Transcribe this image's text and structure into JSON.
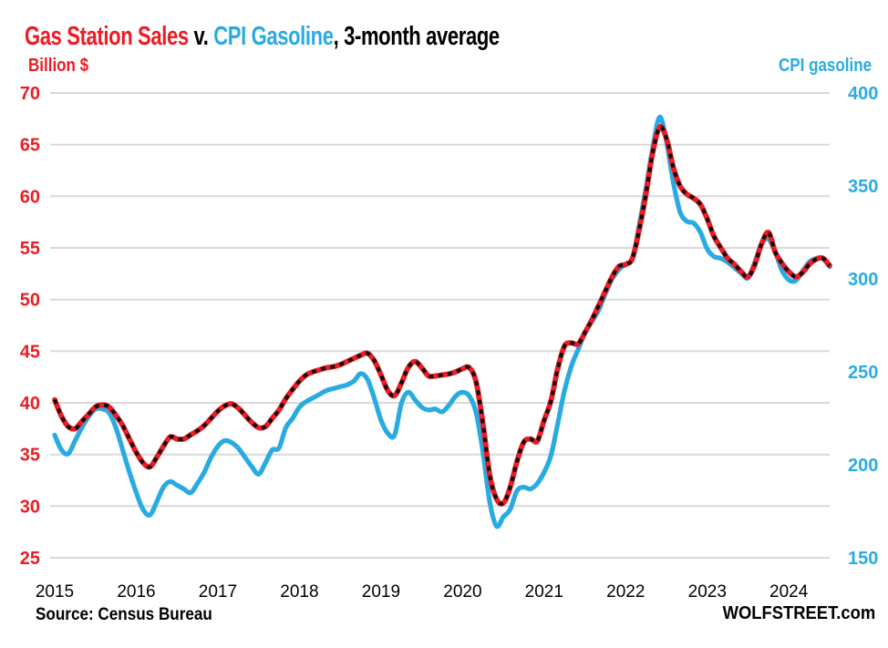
{
  "title": {
    "sales": "Gas Station Sales",
    "vs": " v. ",
    "cpi": "CPI Gasoline",
    "suffix": ", 3-month average"
  },
  "axis_titles": {
    "left": "Billion $",
    "right": "CPI gasoline"
  },
  "footer": {
    "source": "Source: Census Bureau",
    "brand": "WOLFSTREET.com"
  },
  "colors": {
    "sales_red": "#ec1c24",
    "cpi_blue": "#29abe2",
    "dash_black": "#0d0d0d",
    "grid_gray": "#d9d9d9",
    "text_black": "#000000"
  },
  "chart_data": {
    "type": "line",
    "title": "Gas Station Sales v. CPI Gasoline, 3-month average",
    "x_tick_labels": [
      "2015",
      "2016",
      "2017",
      "2018",
      "2019",
      "2020",
      "2021",
      "2022",
      "2023",
      "2024"
    ],
    "x_unit": "month",
    "grid": true,
    "left_axis": {
      "label": "Billion $",
      "ticks": [
        70,
        65,
        60,
        55,
        50,
        45,
        40,
        35,
        30,
        25
      ],
      "range": [
        25,
        70
      ]
    },
    "right_axis": {
      "label": "CPI gasoline",
      "ticks": [
        400,
        350,
        300,
        250,
        200,
        150
      ],
      "range": [
        150,
        400
      ]
    },
    "series": [
      {
        "name": "Gas Station Sales",
        "axis": "left",
        "color": "#ec1c24",
        "style": "solid-with-black-dash-overlay",
        "values": [
          40.3,
          38.7,
          37.7,
          37.5,
          38.2,
          38.9,
          39.6,
          39.8,
          39.6,
          38.8,
          37.8,
          36.5,
          35.2,
          34.2,
          33.8,
          34.7,
          35.8,
          36.7,
          36.5,
          36.5,
          36.9,
          37.3,
          37.8,
          38.5,
          39.2,
          39.7,
          39.9,
          39.5,
          38.8,
          38.1,
          37.6,
          37.7,
          38.5,
          39.3,
          40.4,
          41.3,
          42.1,
          42.7,
          43.0,
          43.2,
          43.4,
          43.5,
          43.7,
          44.0,
          44.3,
          44.6,
          44.8,
          44.1,
          42.7,
          41.2,
          40.7,
          41.9,
          43.4,
          44.0,
          43.4,
          42.6,
          42.6,
          42.7,
          42.8,
          43.0,
          43.3,
          43.4,
          42.0,
          38.0,
          33.0,
          30.7,
          30.3,
          31.8,
          34.3,
          36.2,
          36.5,
          36.3,
          38.3,
          40.2,
          43.3,
          45.5,
          45.8,
          45.7,
          46.8,
          48.0,
          49.4,
          50.8,
          52.2,
          53.2,
          53.4,
          54.0,
          56.8,
          60.3,
          64.3,
          66.7,
          65.6,
          62.8,
          61.0,
          60.2,
          59.8,
          59.2,
          57.8,
          56.1,
          55.0,
          54.0,
          53.4,
          52.7,
          52.2,
          53.4,
          55.4,
          56.5,
          54.6,
          53.5,
          52.7,
          52.2,
          52.6,
          53.4,
          53.9,
          54.0,
          53.3
        ]
      },
      {
        "name": "CPI Gasoline",
        "axis": "right",
        "color": "#29abe2",
        "style": "solid",
        "values": [
          216,
          208,
          206,
          213,
          220,
          226,
          230,
          230,
          228,
          220,
          208,
          196,
          185,
          176,
          173,
          180,
          188,
          191,
          189,
          187,
          185,
          190,
          196,
          204,
          210,
          213,
          212,
          209,
          204,
          199,
          195,
          201,
          208,
          209,
          220,
          225,
          231,
          234,
          236,
          238,
          240,
          241,
          242,
          243,
          245,
          249,
          246,
          236,
          224,
          217,
          216,
          233,
          239,
          235,
          231,
          229.5,
          230,
          228.5,
          232,
          237,
          239,
          237,
          228,
          207,
          180,
          167,
          172,
          176,
          186,
          188,
          187,
          190,
          196,
          205,
          222,
          240,
          253,
          262,
          271,
          277,
          283,
          292,
          300,
          305,
          308,
          311,
          329,
          349,
          371,
          387,
          374,
          352,
          336,
          331,
          330,
          325,
          316,
          312,
          311,
          309,
          306,
          303,
          300.5,
          309,
          319,
          321.5,
          314.5,
          304.5,
          299.5,
          299,
          304,
          309,
          311,
          311,
          306.5
        ]
      }
    ]
  }
}
